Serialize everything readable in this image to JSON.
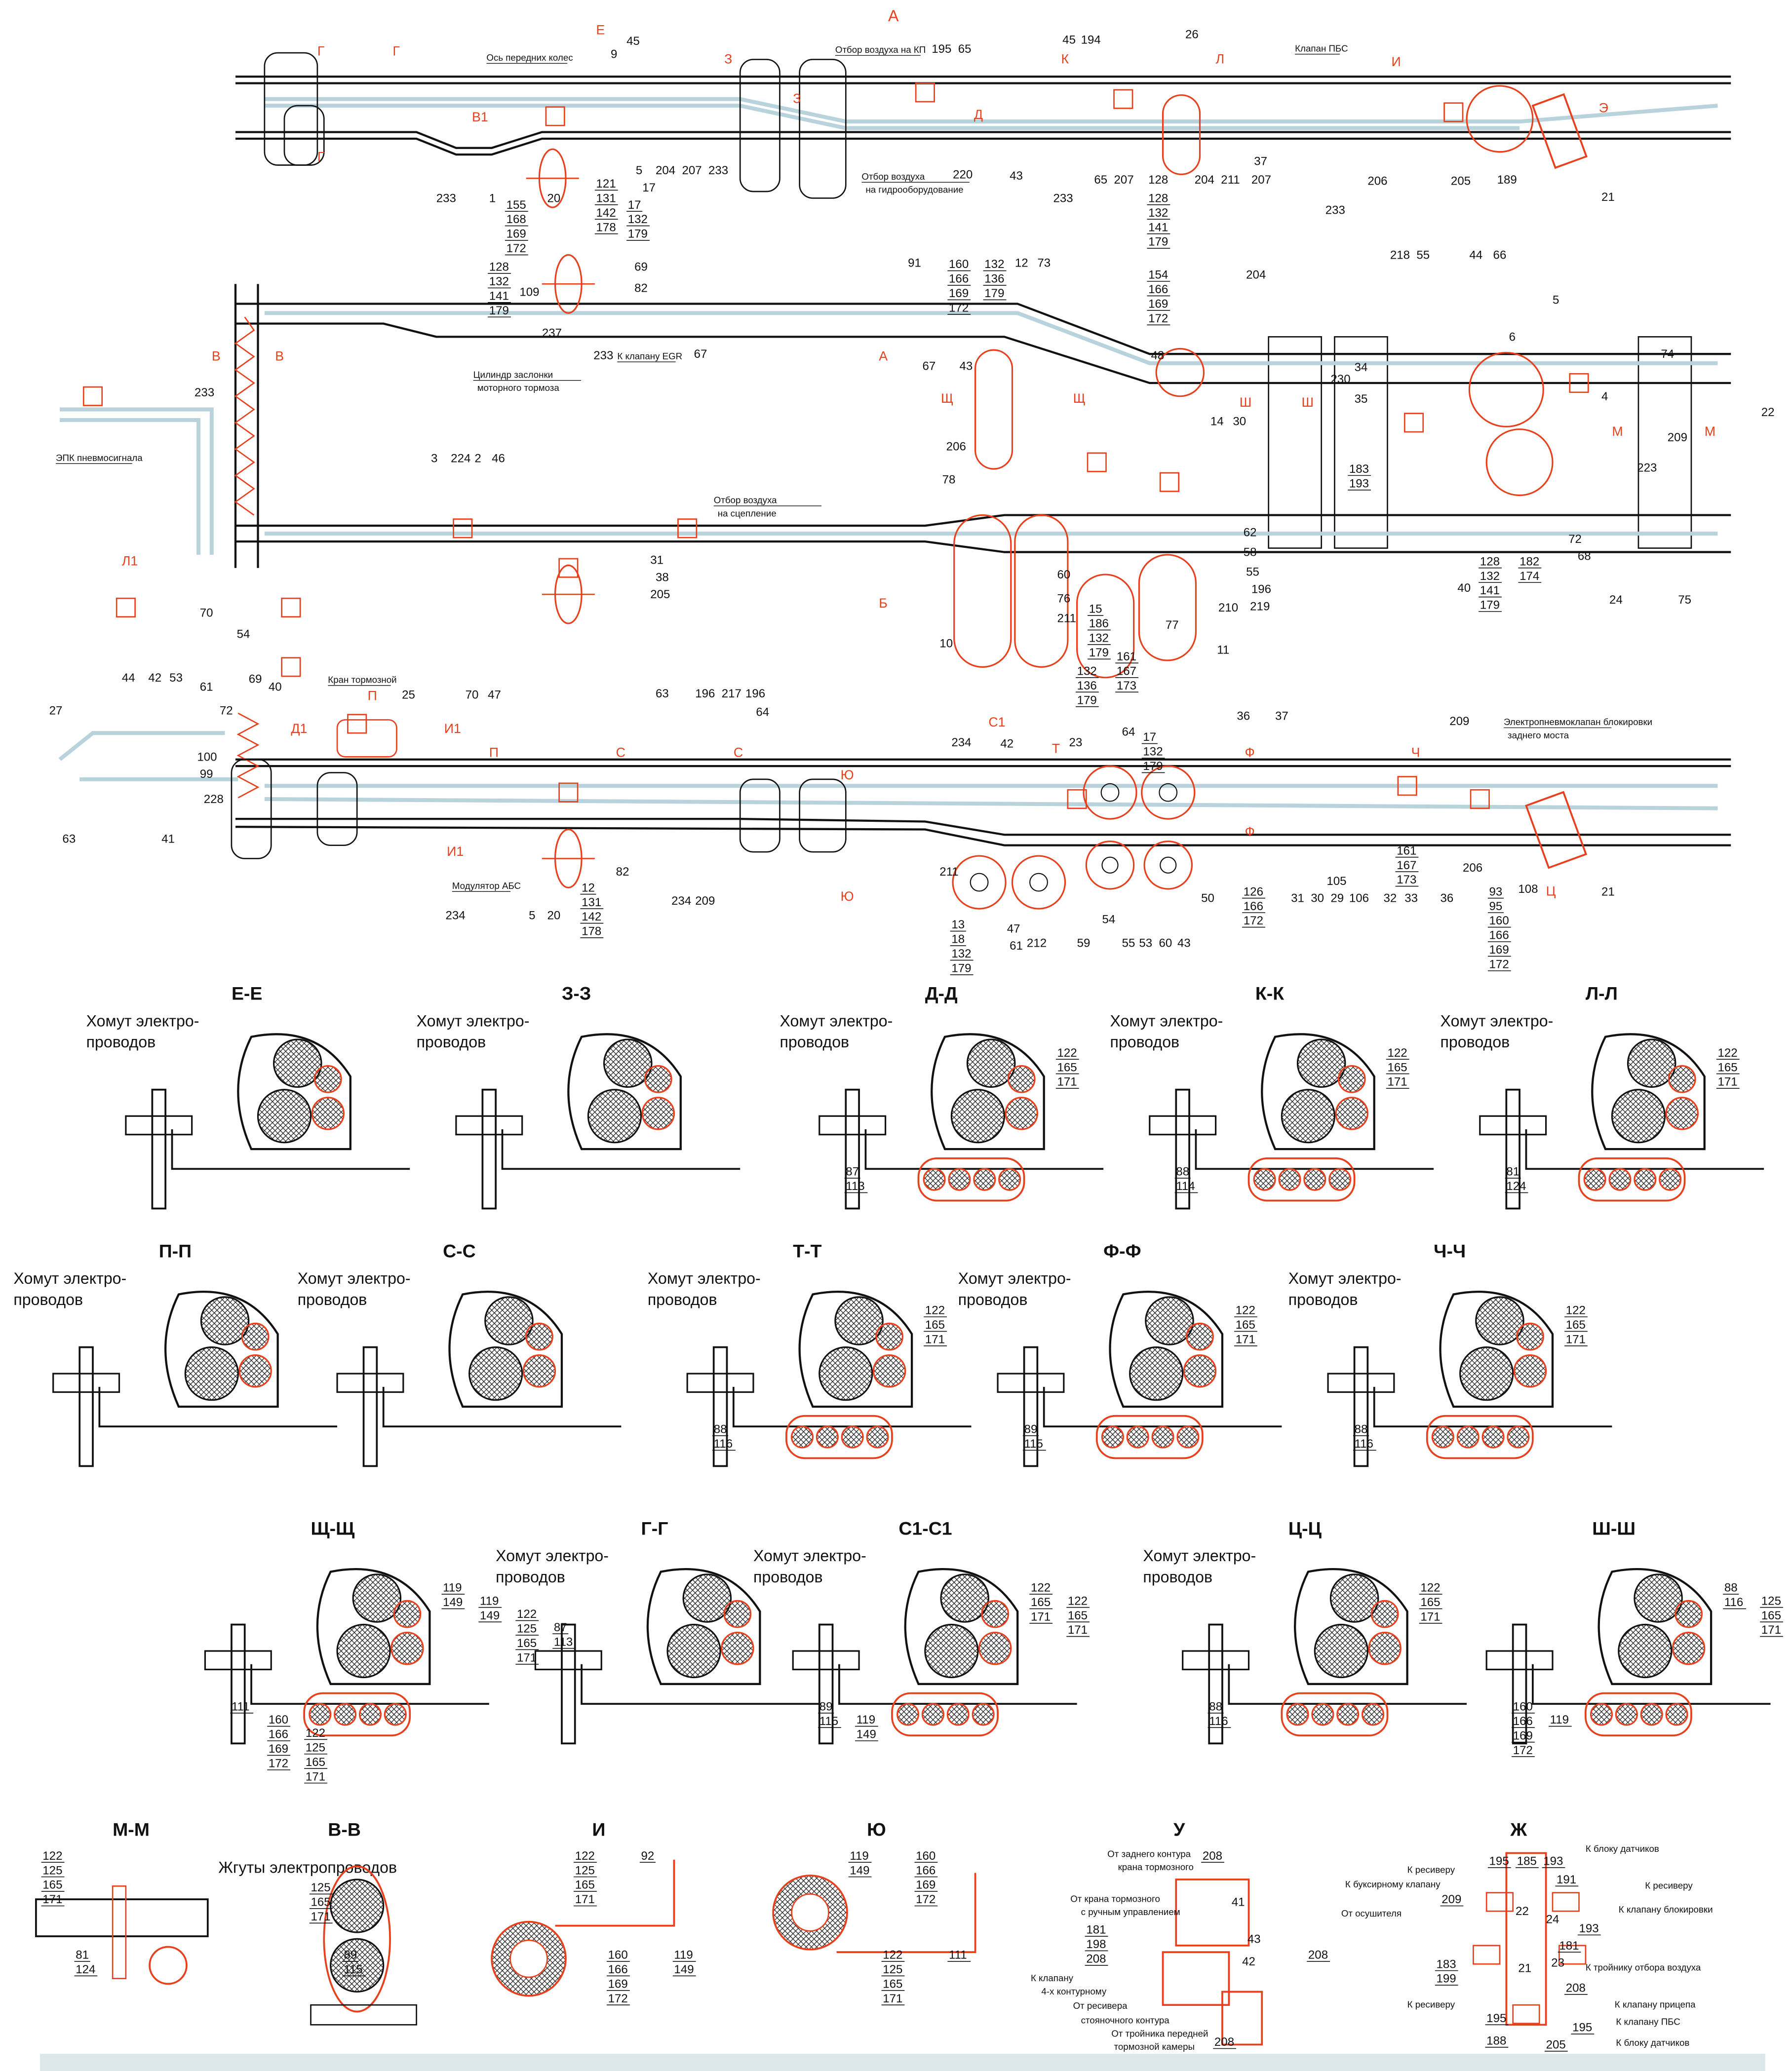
{
  "sheet_label": "А",
  "colors": {
    "line": "#111111",
    "pneumatic": "#e8401c",
    "harness": "#b9d3dc",
    "footer_band": "#dbe7ea"
  },
  "top_view": {
    "annotations": [
      "Ось передних колес",
      "Отбор воздуха на КП",
      "Клапан ПБС",
      "Отбор воздуха на гидрооборудование",
      "К клапану EGR",
      "Цилиндр заслонки моторного тормоза",
      "ЭПК пневмосигнала",
      "Отбор воздуха на сцепление",
      "Кран тормозной",
      "Модулятор АБС",
      "Электропневмоклапан блокировки заднего моста"
    ],
    "callouts": [
      "45",
      "9",
      "195",
      "65",
      "45",
      "194",
      "26",
      "233",
      "1",
      "20",
      "5",
      "204",
      "207",
      "233",
      "17",
      "65",
      "207",
      "43",
      "220",
      "233",
      "204",
      "211",
      "207",
      "233",
      "206",
      "205",
      "189",
      "21",
      "37",
      "128",
      "91",
      "12",
      "73",
      "204",
      "218",
      "55",
      "44",
      "66",
      "5",
      "6",
      "67",
      "67",
      "43",
      "237",
      "233",
      "109",
      "69",
      "82",
      "233",
      "22",
      "74",
      "209",
      "14",
      "30",
      "48",
      "34",
      "35",
      "230",
      "4",
      "223",
      "24",
      "75",
      "72",
      "68",
      "40",
      "11",
      "10",
      "78",
      "206",
      "60",
      "76",
      "211",
      "77",
      "58",
      "62",
      "55",
      "196",
      "210",
      "219",
      "54",
      "70",
      "27",
      "44",
      "42",
      "53",
      "61",
      "72",
      "69",
      "40",
      "100",
      "99",
      "228",
      "63",
      "41",
      "3",
      "224",
      "2",
      "46",
      "31",
      "38",
      "205",
      "25",
      "70",
      "47",
      "63",
      "196",
      "217",
      "196",
      "64",
      "234",
      "42",
      "23",
      "36",
      "37",
      "209",
      "234",
      "82",
      "5",
      "20",
      "234",
      "209",
      "211",
      "47",
      "61",
      "212",
      "59",
      "55",
      "53",
      "60",
      "43",
      "50",
      "54",
      "31",
      "30",
      "29",
      "105",
      "106",
      "32",
      "33",
      "36",
      "21",
      "108",
      "206",
      "64"
    ],
    "callout_stacks": [
      [
        "121",
        "131",
        "142",
        "178"
      ],
      [
        "17",
        "132",
        "179"
      ],
      [
        "155",
        "168",
        "169",
        "172"
      ],
      [
        "128",
        "132",
        "141",
        "179"
      ],
      [
        "160",
        "166",
        "169",
        "172"
      ],
      [
        "132",
        "136",
        "179"
      ],
      [
        "154",
        "166",
        "169",
        "172"
      ],
      [
        "128",
        "132",
        "141",
        "179"
      ],
      [
        "183",
        "193"
      ],
      [
        "132",
        "136",
        "179"
      ],
      [
        "161",
        "167",
        "173"
      ],
      [
        "128",
        "132",
        "141",
        "179"
      ],
      [
        "15",
        "186",
        "132",
        "179"
      ],
      [
        "17",
        "132",
        "179"
      ],
      [
        "13",
        "18",
        "132",
        "179"
      ],
      [
        "126",
        "166",
        "172"
      ],
      [
        "93",
        "95",
        "160",
        "166",
        "169",
        "172"
      ],
      [
        "182",
        "174"
      ],
      [
        "12",
        "131",
        "142",
        "178"
      ],
      [
        "161",
        "167",
        "173"
      ]
    ],
    "section_markers": [
      "Е",
      "Г",
      "Г",
      "З",
      "З",
      "Д",
      "К",
      "Л",
      "И",
      "Э",
      "В1",
      "Г",
      "Щ",
      "Щ",
      "Ш",
      "Ш",
      "М",
      "М",
      "В",
      "В",
      "Б",
      "А",
      "П",
      "П",
      "С",
      "С",
      "Ю",
      "Ю",
      "Т",
      "Ф",
      "Ф",
      "Ч",
      "Ц",
      "С1",
      "Л1",
      "Д1",
      "И1",
      "И1"
    ]
  },
  "clamp_label": [
    "Хомут электро-",
    "проводов"
  ],
  "sections": [
    {
      "title": "Е-Е",
      "label": true,
      "callouts": []
    },
    {
      "title": "З-З",
      "label": true,
      "callouts": []
    },
    {
      "title": "Д-Д",
      "label": true,
      "callouts": [
        [
          "122",
          "165",
          "171"
        ],
        [
          "87",
          "113"
        ]
      ]
    },
    {
      "title": "К-К",
      "label": true,
      "callouts": [
        [
          "122",
          "165",
          "171"
        ],
        [
          "88",
          "114"
        ]
      ]
    },
    {
      "title": "Л-Л",
      "label": true,
      "callouts": [
        [
          "122",
          "165",
          "171"
        ],
        [
          "81",
          "124"
        ]
      ]
    },
    {
      "title": "П-П",
      "label": true,
      "callouts": []
    },
    {
      "title": "С-С",
      "label": true,
      "callouts": []
    },
    {
      "title": "Т-Т",
      "label": true,
      "callouts": [
        [
          "122",
          "165",
          "171"
        ],
        [
          "88",
          "116"
        ]
      ]
    },
    {
      "title": "Ф-Ф",
      "label": true,
      "callouts": [
        [
          "122",
          "165",
          "171"
        ],
        [
          "89",
          "115"
        ]
      ]
    },
    {
      "title": "Ч-Ч",
      "label": true,
      "callouts": [
        [
          "122",
          "165",
          "171"
        ],
        [
          "88",
          "116"
        ]
      ]
    },
    {
      "title": "Щ-Щ",
      "label": false,
      "callouts": [
        [
          "119",
          "149"
        ],
        [
          "111"
        ],
        [
          "119",
          "149"
        ],
        [
          "160",
          "166",
          "169",
          "172"
        ],
        [
          "122",
          "125",
          "165",
          "171"
        ],
        [
          "122",
          "125",
          "165",
          "171"
        ],
        [
          "87",
          "113"
        ]
      ]
    },
    {
      "title": "Г-Г",
      "label": true,
      "callouts": []
    },
    {
      "title": "С1-С1",
      "label": true,
      "callouts": [
        [
          "122",
          "165",
          "171"
        ],
        [
          "89",
          "115"
        ],
        [
          "122",
          "165",
          "171"
        ],
        [
          "119",
          "149"
        ]
      ]
    },
    {
      "title": "Ц-Ц",
      "label": true,
      "callouts": [
        [
          "122",
          "165",
          "171"
        ],
        [
          "88",
          "116"
        ]
      ]
    },
    {
      "title": "Ш-Ш",
      "label": false,
      "callouts": [
        [
          "88",
          "116"
        ],
        [
          "160",
          "166",
          "169",
          "172"
        ],
        [
          "125",
          "165",
          "171"
        ],
        [
          "119"
        ]
      ]
    }
  ],
  "details": {
    "mm": {
      "title": "М-М",
      "callouts": [
        [
          "122",
          "125",
          "165",
          "171"
        ],
        [
          "81",
          "124"
        ]
      ]
    },
    "vv": {
      "title": "В-В",
      "label": "Жгуты электропроводов",
      "callouts": [
        [
          "125",
          "165",
          "171"
        ],
        [
          "89",
          "115"
        ]
      ]
    },
    "i": {
      "title": "И",
      "callouts": [
        [
          "122",
          "125",
          "165",
          "171"
        ],
        [
          "160",
          "166",
          "169",
          "172"
        ],
        [
          "92"
        ],
        [
          "119",
          "149"
        ]
      ]
    },
    "yu": {
      "title": "Ю",
      "callouts": [
        [
          "119",
          "149"
        ],
        [
          "122",
          "125",
          "165",
          "171"
        ],
        [
          "160",
          "166",
          "169",
          "172"
        ],
        [
          "111"
        ]
      ]
    },
    "u": {
      "title": "У",
      "labels": [
        "От заднего контура крана тормозного",
        "От крана тормозного с ручным управлением",
        "К клапану 4-х контурному",
        "От ресивера стояночного контура",
        "От тройника передней тормозной камеры"
      ],
      "callouts": [
        [
          "208"
        ],
        [
          "181",
          "198",
          "208"
        ],
        [
          "208"
        ],
        [
          "208"
        ]
      ],
      "ports": [
        "41",
        "43",
        "42"
      ]
    },
    "zh": {
      "title": "Ж",
      "labels": [
        "К ресиверу",
        "К буксирному клапану",
        "От осушителя",
        "К блоку датчиков",
        "К ресиверу",
        "К клапану блокировки",
        "К тройнику отбора воздуха",
        "К клапану прицепа",
        "К клапану ПБС",
        "К блоку датчиков",
        "К ресиверу"
      ],
      "callouts": [
        [
          "195"
        ],
        [
          "185"
        ],
        [
          "193"
        ],
        [
          "191"
        ],
        [
          "209"
        ],
        [
          "193"
        ],
        [
          "181"
        ],
        [
          "183",
          "199"
        ],
        [
          "208"
        ],
        [
          "195"
        ],
        [
          "188"
        ],
        [
          "195"
        ],
        [
          "205"
        ]
      ],
      "ports": [
        "22",
        "24",
        "23",
        "21"
      ]
    }
  }
}
